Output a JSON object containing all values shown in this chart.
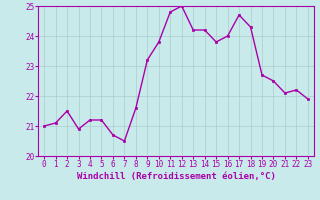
{
  "x": [
    0,
    1,
    2,
    3,
    4,
    5,
    6,
    7,
    8,
    9,
    10,
    11,
    12,
    13,
    14,
    15,
    16,
    17,
    18,
    19,
    20,
    21,
    22,
    23
  ],
  "y": [
    21.0,
    21.1,
    21.5,
    20.9,
    21.2,
    21.2,
    20.7,
    20.5,
    21.6,
    23.2,
    23.8,
    24.8,
    25.0,
    24.2,
    24.2,
    23.8,
    24.0,
    24.7,
    24.3,
    22.7,
    22.5,
    22.1,
    22.2,
    21.9
  ],
  "line_color": "#aa00aa",
  "marker_color": "#aa00aa",
  "bg_color": "#c8eaea",
  "grid_color": "#aacccc",
  "xlabel": "Windchill (Refroidissement éolien,°C)",
  "ylim": [
    20,
    25
  ],
  "xlim_min": -0.5,
  "xlim_max": 23.5,
  "yticks": [
    20,
    21,
    22,
    23,
    24,
    25
  ],
  "xticks": [
    0,
    1,
    2,
    3,
    4,
    5,
    6,
    7,
    8,
    9,
    10,
    11,
    12,
    13,
    14,
    15,
    16,
    17,
    18,
    19,
    20,
    21,
    22,
    23
  ],
  "tick_fontsize": 5.5,
  "label_fontsize": 6.5,
  "linewidth": 1.0,
  "markersize": 2.0
}
